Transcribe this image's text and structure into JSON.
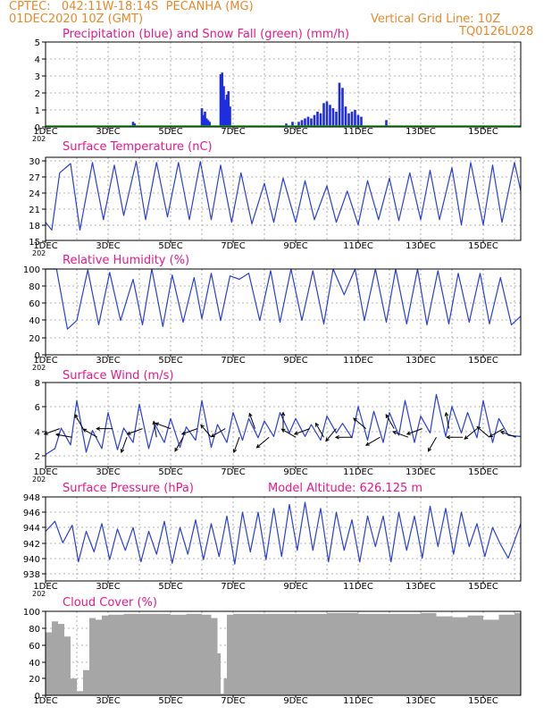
{
  "header": {
    "line1_left": "CPTEC:   042:11W-18:14S  PECANHA (MG)",
    "line2_left": "01DEC2020 10Z (GMT)",
    "line2_right": "Vertical Grid Line: 10Z",
    "line3_right": "TQ0126L028"
  },
  "x_axis": {
    "tick_labels": [
      "1DEC",
      "3DEC",
      "5DEC",
      "7DEC",
      "9DEC",
      "11DEC",
      "13DEC",
      "15DEC"
    ],
    "tick_days": [
      1,
      3,
      5,
      7,
      9,
      11,
      13,
      15
    ],
    "year_fragment": "202",
    "day_range": [
      1,
      16.2
    ]
  },
  "chart_data": [
    {
      "type": "bar",
      "title": "Precipitation (blue) and Snow Fall (green) (mm/h)",
      "ylim": [
        0,
        5
      ],
      "yticks": [
        "5",
        "4",
        "3",
        "2",
        "1",
        "0"
      ],
      "series": [
        {
          "name": "Precipitation",
          "color": "#1f2de0",
          "x": [
            3.8,
            3.85,
            6.0,
            6.05,
            6.1,
            6.15,
            6.2,
            6.25,
            6.6,
            6.65,
            6.7,
            6.75,
            6.8,
            6.85,
            6.9,
            8.7,
            8.9,
            9.1,
            9.2,
            9.3,
            9.4,
            9.5,
            9.6,
            9.7,
            9.8,
            9.9,
            10.0,
            10.1,
            10.2,
            10.3,
            10.4,
            10.5,
            10.6,
            10.7,
            10.8,
            10.9,
            11.0,
            11.1,
            11.9
          ],
          "values": [
            0.3,
            0.2,
            1.1,
            0.7,
            0.9,
            0.5,
            0.4,
            0.3,
            3.1,
            3.2,
            2.4,
            1.6,
            1.9,
            2.1,
            1.2,
            0.2,
            0.3,
            0.3,
            0.4,
            0.5,
            0.6,
            0.5,
            0.7,
            0.9,
            0.8,
            1.4,
            1.5,
            1.3,
            1.1,
            0.9,
            2.6,
            2.3,
            1.2,
            0.8,
            0.9,
            1.0,
            0.7,
            0.6,
            0.4
          ]
        },
        {
          "name": "Snow Fall",
          "color": "#14a014",
          "values_all": 0
        }
      ]
    },
    {
      "type": "line",
      "title": "Surface Temperature (nC)",
      "ylim": [
        15,
        31
      ],
      "yticks": [
        "30",
        "27",
        "24",
        "21",
        "18",
        "15"
      ],
      "color": "#2a3fd8",
      "x": [
        1.0,
        1.2,
        1.45,
        1.8,
        2.1,
        2.5,
        2.85,
        3.2,
        3.5,
        3.9,
        4.2,
        4.55,
        4.9,
        5.25,
        5.6,
        5.95,
        6.3,
        6.6,
        6.95,
        7.25,
        7.6,
        8.0,
        8.3,
        8.6,
        9.0,
        9.3,
        9.6,
        10.0,
        10.3,
        10.65,
        11.0,
        11.3,
        11.65,
        12.0,
        12.3,
        12.65,
        13.0,
        13.3,
        13.6,
        14.0,
        14.3,
        14.6,
        15.0,
        15.3,
        15.6,
        16.0,
        16.2
      ],
      "values": [
        18.5,
        17,
        28,
        29.8,
        17,
        30,
        19,
        29.5,
        19.8,
        30.2,
        19,
        30,
        19.5,
        30,
        19,
        30.2,
        19,
        29.5,
        18.5,
        28,
        18.2,
        26,
        18.5,
        27,
        18.5,
        26.5,
        19,
        25.5,
        18.5,
        24.5,
        18,
        26.5,
        19,
        27,
        18.8,
        28,
        19,
        28.5,
        19,
        29,
        18,
        30,
        18,
        29.5,
        18.5,
        30,
        24.5
      ]
    },
    {
      "type": "line",
      "title": "Relative Humidity (%)",
      "ylim": [
        0,
        100
      ],
      "yticks": [
        "100",
        "80",
        "60",
        "40",
        "20",
        "0"
      ],
      "color": "#2a3fd8",
      "x": [
        1.0,
        1.35,
        1.7,
        2.0,
        2.35,
        2.7,
        3.05,
        3.4,
        3.8,
        4.1,
        4.4,
        4.75,
        5.05,
        5.4,
        5.75,
        6.0,
        6.3,
        6.6,
        6.9,
        7.2,
        7.5,
        7.85,
        8.2,
        8.5,
        8.85,
        9.2,
        9.55,
        9.9,
        10.2,
        10.55,
        10.9,
        11.2,
        11.55,
        11.9,
        12.2,
        12.55,
        12.9,
        13.2,
        13.55,
        13.9,
        14.2,
        14.55,
        14.9,
        15.2,
        15.55,
        15.9,
        16.2
      ],
      "values": [
        100,
        100,
        30,
        40,
        99,
        35,
        96,
        40,
        88,
        35,
        100,
        33,
        93,
        38,
        90,
        42,
        95,
        40,
        92,
        88,
        95,
        40,
        98,
        38,
        100,
        40,
        98,
        36,
        100,
        70,
        100,
        40,
        100,
        38,
        100,
        36,
        100,
        35,
        98,
        36,
        95,
        38,
        95,
        36,
        90,
        35,
        45
      ]
    },
    {
      "type": "line",
      "title": "Surface Wind (m/s)",
      "ylim": [
        1,
        8
      ],
      "yticks": [
        "8",
        "6",
        "4",
        "2"
      ],
      "color": "#2a3fd8",
      "arrow_color": "#000000",
      "x": [
        1.0,
        1.3,
        1.5,
        1.8,
        2.0,
        2.3,
        2.5,
        2.8,
        3.0,
        3.3,
        3.5,
        3.8,
        4.0,
        4.3,
        4.5,
        4.8,
        5.0,
        5.3,
        5.5,
        5.8,
        6.0,
        6.3,
        6.5,
        6.8,
        7.0,
        7.3,
        7.5,
        7.8,
        8.0,
        8.3,
        8.5,
        8.8,
        9.0,
        9.3,
        9.5,
        9.8,
        10.0,
        10.3,
        10.5,
        10.8,
        11.0,
        11.3,
        11.5,
        11.8,
        12.0,
        12.3,
        12.5,
        12.8,
        13.0,
        13.3,
        13.5,
        13.8,
        14.0,
        14.3,
        14.5,
        14.8,
        15.0,
        15.3,
        15.5,
        15.8,
        16.2
      ],
      "values": [
        2.0,
        2.5,
        4.2,
        2.8,
        6.5,
        2.2,
        4.0,
        2.5,
        5.5,
        2.4,
        4.2,
        3.0,
        6.2,
        2.5,
        4.5,
        3.0,
        5.0,
        2.6,
        4.3,
        3.2,
        6.5,
        2.6,
        4.5,
        3.0,
        5.5,
        3.2,
        5.0,
        3.4,
        4.8,
        3.5,
        5.5,
        3.8,
        5.0,
        3.5,
        4.5,
        3.2,
        5.2,
        3.8,
        4.6,
        3.4,
        6.0,
        3.2,
        5.6,
        3.0,
        5.5,
        3.6,
        6.5,
        3.0,
        5.2,
        3.8,
        7.0,
        3.5,
        6.0,
        3.8,
        5.5,
        3.4,
        6.5,
        3.0,
        5.0,
        3.6,
        3.5
      ],
      "arrows_day": [
        1.45,
        1.85,
        2.2,
        2.65,
        3.15,
        3.6,
        4.1,
        4.55,
        5.0,
        5.4,
        5.85,
        6.3,
        6.75,
        7.2,
        7.7,
        8.15,
        8.6,
        9.0,
        9.45,
        9.9,
        10.3,
        10.8,
        11.25,
        11.7,
        12.15,
        12.6,
        13.05,
        13.5,
        13.9,
        14.35,
        14.8,
        15.2,
        15.65,
        16.05
      ],
      "arrows_dir_deg": [
        200,
        170,
        120,
        150,
        180,
        250,
        200,
        100,
        160,
        240,
        200,
        130,
        210,
        250,
        110,
        220,
        90,
        150,
        200,
        120,
        230,
        180,
        140,
        210,
        120,
        160,
        200,
        240,
        100,
        180,
        220,
        140,
        210,
        160
      ]
    },
    {
      "type": "line",
      "title": "Surface Pressure (hPa)",
      "annotation": "Model Altitude: 626.125 m",
      "ylim": [
        937,
        948
      ],
      "yticks": [
        "948",
        "946",
        "944",
        "942",
        "940",
        "938"
      ],
      "color": "#2a3fd8",
      "x": [
        1.0,
        1.3,
        1.55,
        1.85,
        2.05,
        2.3,
        2.55,
        2.8,
        3.05,
        3.3,
        3.55,
        3.8,
        4.05,
        4.3,
        4.55,
        4.8,
        5.05,
        5.3,
        5.55,
        5.8,
        6.05,
        6.3,
        6.55,
        6.8,
        7.05,
        7.3,
        7.55,
        7.8,
        8.05,
        8.3,
        8.55,
        8.8,
        9.05,
        9.3,
        9.55,
        9.8,
        10.05,
        10.3,
        10.55,
        10.8,
        11.05,
        11.3,
        11.55,
        11.8,
        12.05,
        12.3,
        12.55,
        12.8,
        13.05,
        13.3,
        13.55,
        13.8,
        14.05,
        14.3,
        14.55,
        14.8,
        15.05,
        15.3,
        15.55,
        15.8,
        16.2
      ],
      "values": [
        943.5,
        944.8,
        942,
        944.3,
        939.5,
        943.5,
        940.8,
        944.5,
        939.8,
        943.8,
        941,
        944,
        939.5,
        943.5,
        940.5,
        944.8,
        939.3,
        944,
        940.5,
        945,
        939.8,
        944.5,
        940.2,
        945.5,
        939.2,
        946,
        940.8,
        946,
        939.8,
        946.5,
        940.2,
        947,
        941,
        947.3,
        941,
        946.5,
        939.5,
        946,
        941,
        945,
        939.5,
        945.5,
        941.5,
        945.5,
        939.5,
        946,
        941,
        945.5,
        940,
        946.8,
        941.5,
        946.5,
        940.5,
        946,
        941.5,
        944.5,
        940.2,
        944,
        941.8,
        940,
        944.5
      ]
    },
    {
      "type": "bar",
      "title": "Cloud Cover (%)",
      "ylim": [
        0,
        100
      ],
      "yticks": [
        "100",
        "80",
        "60",
        "40",
        "20",
        "0"
      ],
      "color": "#a6a6a6",
      "x": [
        1.0,
        1.2,
        1.4,
        1.6,
        1.8,
        2.0,
        2.2,
        2.4,
        2.6,
        2.8,
        3.0,
        3.5,
        4.0,
        4.5,
        5.0,
        5.5,
        6.0,
        6.3,
        6.5,
        6.6,
        6.7,
        6.8,
        7.0,
        8.0,
        9.0,
        10.0,
        11.0,
        12.0,
        13.0,
        13.5,
        14.0,
        14.5,
        15.0,
        15.5,
        16.0,
        16.2
      ],
      "values": [
        75,
        88,
        85,
        70,
        20,
        5,
        30,
        92,
        90,
        95,
        96,
        97,
        97,
        97,
        96,
        97,
        96,
        92,
        50,
        2,
        20,
        96,
        97,
        97,
        97,
        98,
        97,
        97,
        98,
        94,
        93,
        95,
        90,
        96,
        98,
        98
      ]
    }
  ]
}
